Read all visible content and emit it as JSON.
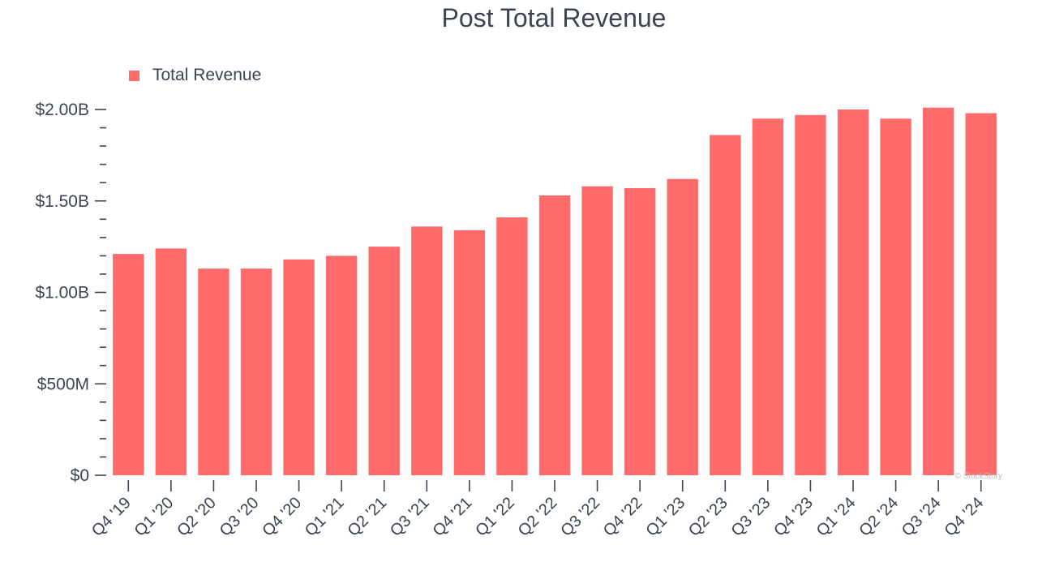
{
  "chart_data": {
    "type": "bar",
    "title": "Post Total Revenue",
    "xlabel": "",
    "ylabel": "",
    "categories": [
      "Q4 '19",
      "Q1 '20",
      "Q2 '20",
      "Q3 '20",
      "Q4 '20",
      "Q1 '21",
      "Q2 '21",
      "Q3 '21",
      "Q4 '21",
      "Q1 '22",
      "Q2 '22",
      "Q3 '22",
      "Q4 '22",
      "Q1 '23",
      "Q2 '23",
      "Q3 '23",
      "Q4 '23",
      "Q1 '24",
      "Q2 '24",
      "Q3 '24",
      "Q4 '24"
    ],
    "series": [
      {
        "name": "Total Revenue",
        "color": "#ff6b6b",
        "values": [
          1.21,
          1.24,
          1.13,
          1.13,
          1.18,
          1.2,
          1.25,
          1.36,
          1.34,
          1.41,
          1.53,
          1.58,
          1.57,
          1.62,
          1.86,
          1.95,
          1.97,
          2.0,
          1.95,
          2.01,
          1.98
        ]
      }
    ],
    "value_unit": "billions USD",
    "ylim": [
      0,
      2.0
    ],
    "yticks": [
      {
        "value": 0,
        "label": "$0"
      },
      {
        "value": 0.5,
        "label": "$500M"
      },
      {
        "value": 1.0,
        "label": "$1.00B"
      },
      {
        "value": 1.5,
        "label": "$1.50B"
      },
      {
        "value": 2.0,
        "label": "$2.00B"
      }
    ],
    "minor_tick_step": 0.1,
    "grid": false,
    "legend_position": "top-left",
    "watermark": "© StockStory"
  }
}
